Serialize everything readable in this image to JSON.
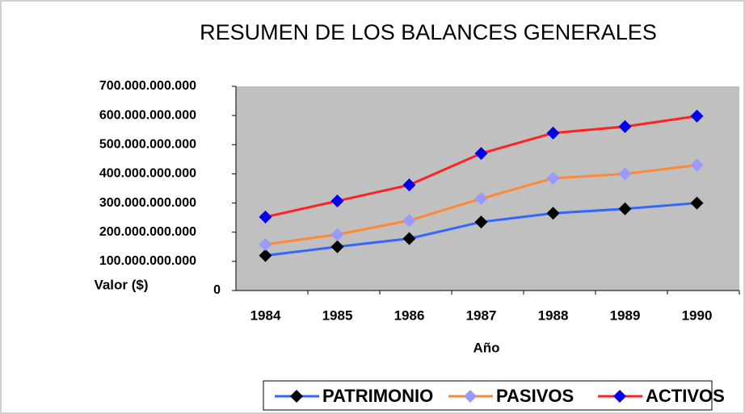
{
  "chart_data": {
    "type": "line",
    "title": "RESUMEN DE LOS BALANCES GENERALES",
    "y_label": "Valor ($)",
    "x_label": "Año",
    "categories": [
      "1984",
      "1985",
      "1986",
      "1987",
      "1988",
      "1989",
      "1990"
    ],
    "series": [
      {
        "name": "PATRIMONIO",
        "color": "#3366ff",
        "marker_color": "#000000",
        "values": [
          120000000000,
          150000000000,
          178000000000,
          235000000000,
          265000000000,
          280000000000,
          300000000000
        ]
      },
      {
        "name": "PASIVOS",
        "color": "#ff8833",
        "marker_color": "#9999ff",
        "values": [
          158000000000,
          192000000000,
          240000000000,
          315000000000,
          385000000000,
          400000000000,
          430000000000
        ]
      },
      {
        "name": "ACTIVOS",
        "color": "#ff2222",
        "marker_color": "#0000ee",
        "values": [
          252000000000,
          307000000000,
          362000000000,
          470000000000,
          540000000000,
          562000000000,
          598000000000
        ]
      }
    ],
    "ylim": [
      0,
      700000000000
    ],
    "yticks": [
      0,
      {
        "value": 100000000000,
        "label": "100.000.000.000"
      },
      {
        "value": 200000000000,
        "label": "200.000.000.000"
      },
      {
        "value": 300000000000,
        "label": "300.000.000.000"
      },
      {
        "value": 400000000000,
        "label": "400.000.000.000"
      },
      {
        "value": 500000000000,
        "label": "500.000.000.000"
      },
      {
        "value": 600000000000,
        "label": "600.000.000.000"
      },
      {
        "value": 700000000000,
        "label": "700.000.000.000"
      }
    ],
    "plot_background": "#c0c0c0",
    "legend": "bottom"
  }
}
